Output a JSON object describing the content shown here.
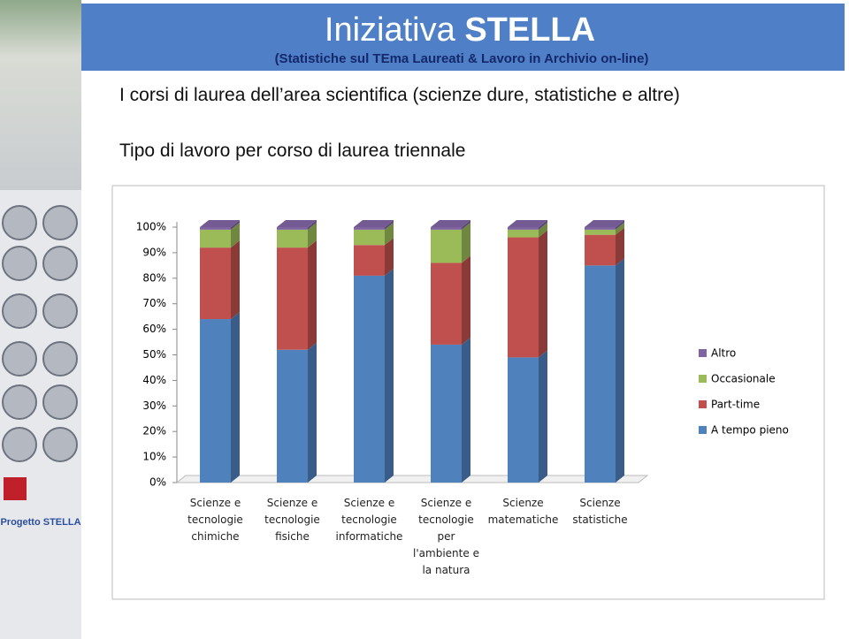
{
  "header": {
    "title_light": "Iniziativa",
    "title_bold": "STELLA",
    "subtitle": "(Statistiche sul TEma Laureati  & Lavoro in Archivio on-line)"
  },
  "sidebar": {
    "label": "Progetto STELLA"
  },
  "heading": "I corsi di laurea dell’area scientifica (scienze dure, statistiche e altre)",
  "chart_data": {
    "type": "stacked-bar-100",
    "title": "Tipo di lavoro per corso di laurea triennale",
    "categories": [
      "Scienze e\ntecnologie\nchimiche",
      "Scienze e\ntecnologie\nfisiche",
      "Scienze e\ntecnologie\ninformatiche",
      "Scienze e\ntecnologie\nper\nl'ambiente e\nla natura",
      "Scienze\nmatematiche",
      "Scienze\nstatistiche"
    ],
    "series": [
      {
        "name": "A tempo pieno",
        "color": "#4f81bd",
        "values": [
          64,
          52,
          81,
          54,
          49,
          85
        ]
      },
      {
        "name": "Part-time",
        "color": "#c0504d",
        "values": [
          28,
          40,
          12,
          32,
          47,
          12
        ]
      },
      {
        "name": "Occasionale",
        "color": "#9bbb59",
        "values": [
          7,
          7,
          6,
          13,
          3,
          2
        ]
      },
      {
        "name": "Altro",
        "color": "#8064a2",
        "values": [
          1,
          1,
          1,
          1,
          1,
          1
        ]
      }
    ],
    "ylim": [
      0,
      100
    ],
    "yticks": [
      {
        "value": 0,
        "label": "0%"
      },
      {
        "value": 10,
        "label": "10%"
      },
      {
        "value": 20,
        "label": "20%"
      },
      {
        "value": 30,
        "label": "30%"
      },
      {
        "value": 40,
        "label": "40%"
      },
      {
        "value": 50,
        "label": "50%"
      },
      {
        "value": 60,
        "label": "60%"
      },
      {
        "value": 70,
        "label": "70%"
      },
      {
        "value": 80,
        "label": "80%"
      },
      {
        "value": 90,
        "label": "90%"
      },
      {
        "value": 100,
        "label": "100%"
      }
    ],
    "legend": "right"
  }
}
